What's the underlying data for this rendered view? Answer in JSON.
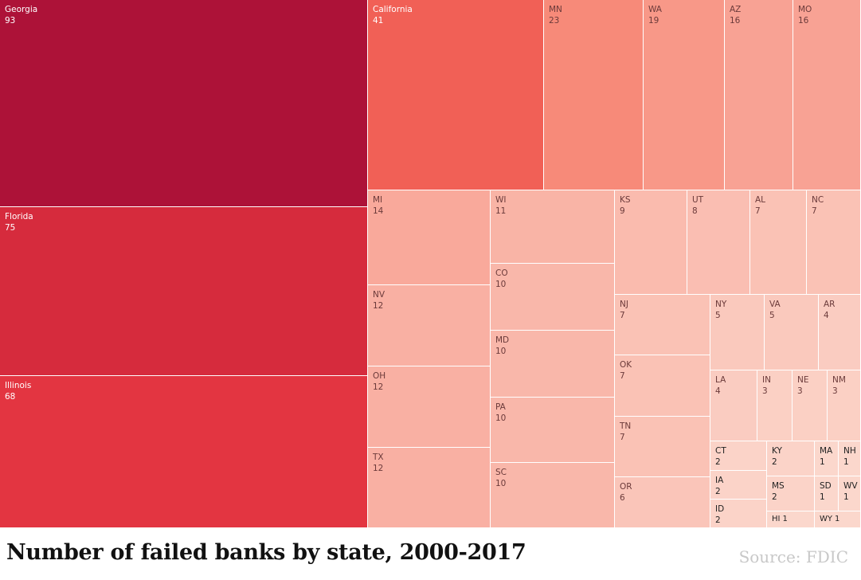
{
  "chart_data": {
    "type": "treemap",
    "title": "Number of failed banks by state, 2000-2017",
    "source": "Source: FDIC",
    "color_scale": [
      "#fbd7cc",
      "#f6715f",
      "#e2323f",
      "#ad1238"
    ],
    "tiles": [
      {
        "label": "Georgia",
        "value": 93
      },
      {
        "label": "Florida",
        "value": 75
      },
      {
        "label": "Illinois",
        "value": 68
      },
      {
        "label": "California",
        "value": 41
      },
      {
        "label": "MN",
        "value": 23
      },
      {
        "label": "WA",
        "value": 19
      },
      {
        "label": "AZ",
        "value": 16
      },
      {
        "label": "MO",
        "value": 16
      },
      {
        "label": "MI",
        "value": 14
      },
      {
        "label": "NV",
        "value": 12
      },
      {
        "label": "OH",
        "value": 12
      },
      {
        "label": "TX",
        "value": 12
      },
      {
        "label": "WI",
        "value": 11
      },
      {
        "label": "CO",
        "value": 10
      },
      {
        "label": "MD",
        "value": 10
      },
      {
        "label": "PA",
        "value": 10
      },
      {
        "label": "SC",
        "value": 10
      },
      {
        "label": "KS",
        "value": 9
      },
      {
        "label": "UT",
        "value": 8
      },
      {
        "label": "AL",
        "value": 7
      },
      {
        "label": "NC",
        "value": 7
      },
      {
        "label": "NJ",
        "value": 7
      },
      {
        "label": "OK",
        "value": 7
      },
      {
        "label": "TN",
        "value": 7
      },
      {
        "label": "OR",
        "value": 6
      },
      {
        "label": "NY",
        "value": 5
      },
      {
        "label": "VA",
        "value": 5
      },
      {
        "label": "AR",
        "value": 4
      },
      {
        "label": "LA",
        "value": 4
      },
      {
        "label": "IN",
        "value": 3
      },
      {
        "label": "NE",
        "value": 3
      },
      {
        "label": "NM",
        "value": 3
      },
      {
        "label": "CT",
        "value": 2
      },
      {
        "label": "IA",
        "value": 2
      },
      {
        "label": "ID",
        "value": 2
      },
      {
        "label": "KY",
        "value": 2
      },
      {
        "label": "MS",
        "value": 2
      },
      {
        "label": "HI",
        "value": 1
      },
      {
        "label": "MA",
        "value": 1
      },
      {
        "label": "NH",
        "value": 1
      },
      {
        "label": "SD",
        "value": 1
      },
      {
        "label": "WV",
        "value": 1
      },
      {
        "label": "WY",
        "value": 1
      }
    ]
  }
}
